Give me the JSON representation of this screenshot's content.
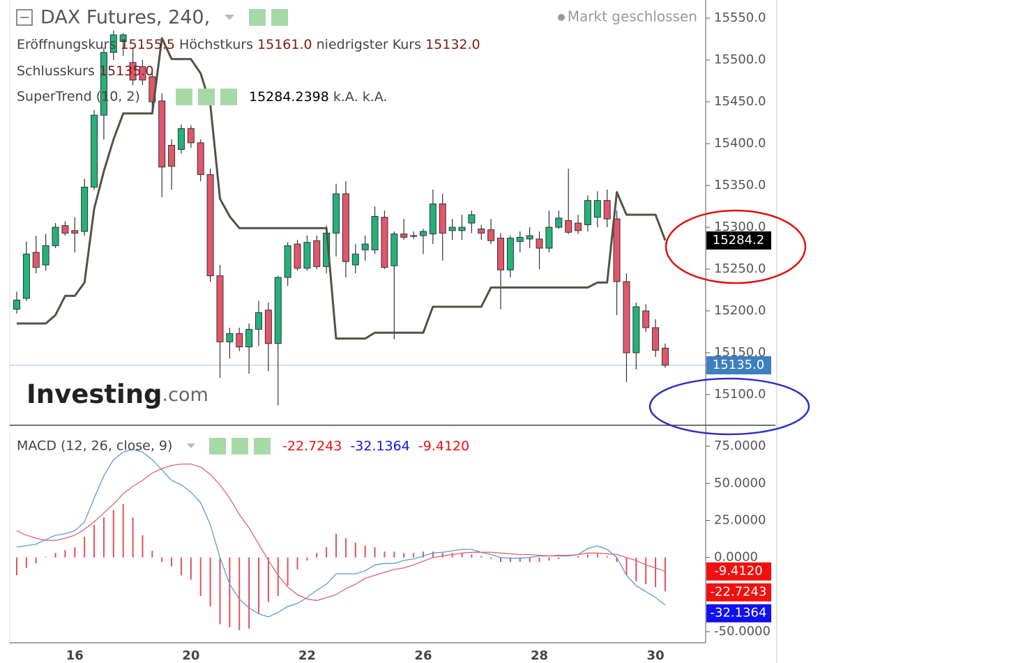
{
  "chart_data": [
    {
      "type": "candlestick",
      "title": "DAX Futures, 240,",
      "status": "Markt geschlossen",
      "ohlc_legend": [
        {
          "label": "Eröffnungskurs",
          "value": "15155.5"
        },
        {
          "label": "Höchstkurs",
          "value": "15161.0"
        },
        {
          "label": "niedrigster Kurs",
          "value": "15132.0"
        },
        {
          "label": "Schlusskurs",
          "value": "15135.0"
        }
      ],
      "watermark": [
        "Investing",
        ".com"
      ],
      "categories": [
        null,
        null,
        null,
        null,
        null,
        null,
        "16",
        null,
        null,
        null,
        null,
        null,
        null,
        null,
        null,
        null,
        null,
        null,
        "20",
        null,
        null,
        null,
        null,
        null,
        null,
        null,
        null,
        null,
        null,
        null,
        "22",
        null,
        null,
        null,
        null,
        null,
        null,
        null,
        null,
        null,
        null,
        null,
        "26",
        null,
        null,
        null,
        null,
        null,
        null,
        null,
        null,
        null,
        null,
        null,
        "28",
        null,
        null,
        null,
        null,
        null,
        null,
        null,
        null,
        null,
        null,
        null,
        "30",
        null
      ],
      "open": [
        15202,
        15215,
        15270,
        15255,
        15278,
        15302,
        15296,
        15295,
        15348,
        15434,
        15509,
        15522,
        15497,
        15492,
        15480,
        15451,
        15398,
        15393,
        15418,
        15401,
        15363,
        15242,
        15163,
        15173,
        15157,
        15178,
        15201,
        15161,
        15240,
        15280,
        15251,
        15284,
        15253,
        15293,
        15340,
        15255,
        15273,
        15273,
        15312,
        15254,
        15292,
        15290,
        15290,
        15292,
        15328,
        15296,
        15296,
        15305,
        15298,
        15297,
        15287,
        15249,
        15283,
        15286,
        15286,
        15275,
        15300,
        15308,
        15305,
        15303,
        15312,
        15332,
        15310,
        15235,
        15150,
        15200,
        15180,
        15155.5
      ],
      "high": [
        15223,
        15283,
        15290,
        15292,
        15305,
        15307,
        15312,
        15358,
        15440,
        15515,
        15535,
        15532,
        15515,
        15500,
        15485,
        15460,
        15405,
        15423,
        15422,
        15405,
        15370,
        15255,
        15180,
        15180,
        15185,
        15212,
        15210,
        15242,
        15282,
        15285,
        15290,
        15290,
        15302,
        15352,
        15355,
        15280,
        15290,
        15325,
        15320,
        15295,
        15310,
        15295,
        15298,
        15345,
        15340,
        15310,
        15315,
        15320,
        15303,
        15310,
        15293,
        15290,
        15295,
        15300,
        15295,
        15320,
        15320,
        15370,
        15315,
        15338,
        15343,
        15345,
        15320,
        15245,
        15210,
        15208,
        15190,
        15161
      ],
      "low": [
        15197,
        15212,
        15245,
        15248,
        15275,
        15290,
        15270,
        15290,
        15345,
        15405,
        15500,
        15505,
        15470,
        15470,
        15440,
        15336,
        15345,
        15388,
        15395,
        15355,
        15235,
        15120,
        15143,
        15152,
        15125,
        15158,
        15128,
        15087,
        15230,
        15248,
        15248,
        15250,
        15245,
        15265,
        15240,
        15245,
        15260,
        15268,
        15250,
        15166,
        15285,
        15286,
        15268,
        15280,
        15260,
        15285,
        15285,
        15293,
        15285,
        15280,
        15202,
        15240,
        15270,
        15275,
        15250,
        15270,
        15298,
        15292,
        15292,
        15295,
        15300,
        15300,
        15195,
        15115,
        15130,
        15175,
        15145,
        15132
      ],
      "close": [
        15213,
        15268,
        15252,
        15278,
        15300,
        15293,
        15293,
        15348,
        15434,
        15509,
        15530,
        15530,
        15476,
        15476,
        15450,
        15372,
        15373,
        15418,
        15401,
        15363,
        15242,
        15163,
        15173,
        15157,
        15178,
        15198,
        15161,
        15240,
        15278,
        15251,
        15282,
        15253,
        15293,
        15340,
        15259,
        15268,
        15280,
        15313,
        15252,
        15292,
        15288,
        15290,
        15295,
        15328,
        15293,
        15300,
        15300,
        15315,
        15293,
        15284,
        15249,
        15287,
        15288,
        15290,
        15275,
        15300,
        15311,
        15294,
        15296,
        15332,
        15332,
        15310,
        15235,
        15150,
        15205,
        15180,
        15153,
        15135
      ],
      "up_color": "#22b27a",
      "down_color": "#e2566b",
      "close_tag_label": "15135.0",
      "close_tag_color": "#3d7fc1",
      "overlays": [
        {
          "name": "SuperTrend (10, 2)",
          "color": "#4f5444",
          "values": [
            15185,
            15185,
            15185,
            15185,
            15195,
            15218,
            15218,
            15234,
            15322,
            15367,
            15405,
            15436,
            15436,
            15436,
            15436,
            15526,
            15501,
            15501,
            15501,
            15484,
            15447,
            15334,
            15313,
            15299,
            15299,
            15299,
            15299,
            15299,
            15299,
            15299,
            15299,
            15299,
            15299,
            15167,
            15167,
            15167,
            15167,
            15174,
            15174,
            15174,
            15174,
            15174,
            15174,
            15205,
            15205,
            15205,
            15205,
            15205,
            15205,
            15228,
            15228,
            15228,
            15228,
            15228,
            15228,
            15228,
            15228,
            15228,
            15228,
            15228,
            15234,
            15234,
            15342,
            15315,
            15315,
            15315,
            15315,
            15284.2398
          ],
          "last_label": "15284.2398",
          "extra_labels": [
            "k.A.",
            "k.A."
          ],
          "tag_label": "15284.2",
          "tag_color": "#000000"
        }
      ],
      "ylim": [
        15063.3,
        15571.7
      ],
      "yticks": [
        {
          "value": 15100,
          "label": "15100.0"
        },
        {
          "value": 15150,
          "label": "15150.0"
        },
        {
          "value": 15200,
          "label": "15200.0"
        },
        {
          "value": 15250,
          "label": "15250.0"
        },
        {
          "value": 15300,
          "label": "15300.0"
        },
        {
          "value": 15350,
          "label": "15350.0"
        },
        {
          "value": 15400,
          "label": "15400.0"
        },
        {
          "value": 15450,
          "label": "15450.0"
        },
        {
          "value": 15500,
          "label": "15500.0"
        },
        {
          "value": 15550,
          "label": "15550.0"
        }
      ]
    },
    {
      "type": "macd",
      "title": "MACD (12, 26, close, 9)",
      "series": [
        {
          "kind": "histogram",
          "color": "#e0525c",
          "tag_color": "#f01010",
          "tag_label": "-22.7243",
          "values": [
            -12,
            -7,
            -4,
            0.5,
            3,
            5,
            7,
            14,
            22,
            27,
            32,
            36,
            27,
            15,
            4.5,
            -3,
            -6,
            -12,
            -15,
            -26,
            -33,
            -45,
            -47,
            -49,
            -48,
            -38,
            -30,
            -26,
            -19,
            -8,
            -2,
            3,
            7,
            16,
            13,
            10,
            8,
            7,
            4,
            4,
            3,
            3,
            4,
            4,
            3,
            3,
            3,
            2,
            1,
            -1,
            -3,
            -3,
            -3,
            -3,
            -3,
            -2,
            -1,
            0,
            1,
            2,
            3,
            1,
            -3,
            -12,
            -16,
            -18,
            -20,
            -22.7243
          ]
        },
        {
          "kind": "line",
          "color": "#5b9bd5",
          "tag_color": "#1010f0",
          "tag_label": "-32.1364",
          "values": [
            7,
            8,
            9,
            12,
            15,
            16,
            18,
            24,
            40,
            55,
            66,
            71,
            73,
            71,
            66,
            59,
            52,
            49,
            44,
            37,
            22,
            0,
            -18,
            -28,
            -34,
            -38,
            -40,
            -37,
            -33,
            -31,
            -27,
            -22,
            -18,
            -11,
            -11,
            -11,
            -9,
            -5,
            -4,
            -4,
            -2,
            -1,
            1,
            3,
            3.5,
            4.5,
            5.5,
            5.5,
            3.5,
            2,
            0,
            -0.5,
            -0.5,
            0,
            1,
            1,
            1,
            1,
            2,
            6,
            7.8,
            5.5,
            0,
            -12,
            -19,
            -23,
            -27,
            -32.1364
          ]
        },
        {
          "kind": "line",
          "color": "#e0636e",
          "tag_color": "#f01010",
          "tag_label": "-9.4120",
          "values": [
            18,
            15,
            13,
            11.5,
            11.5,
            13,
            15,
            19,
            24,
            30,
            36,
            43,
            48,
            52,
            57,
            60,
            62,
            63,
            63,
            61,
            56,
            49,
            40,
            29,
            20,
            9,
            -2,
            -12,
            -20,
            -25,
            -28,
            -29,
            -27,
            -25,
            -21,
            -18,
            -14,
            -12,
            -10,
            -8,
            -7,
            -5,
            -2.5,
            0,
            1,
            2,
            3,
            3.5,
            3.5,
            3.5,
            3,
            2.5,
            2,
            2,
            1.5,
            1,
            1.5,
            1.5,
            2,
            3,
            3,
            2.5,
            2,
            0,
            -2,
            -5,
            -7,
            -9.412
          ]
        }
      ],
      "ylim": [
        -57.5,
        88.2
      ],
      "yticks": [
        {
          "value": -50,
          "label": "-50.0000"
        },
        {
          "value": 0,
          "label": "0.0000"
        },
        {
          "value": 25,
          "label": "25.0000"
        },
        {
          "value": 50,
          "label": "50.0000"
        },
        {
          "value": 75,
          "label": "75.0000"
        }
      ]
    }
  ]
}
